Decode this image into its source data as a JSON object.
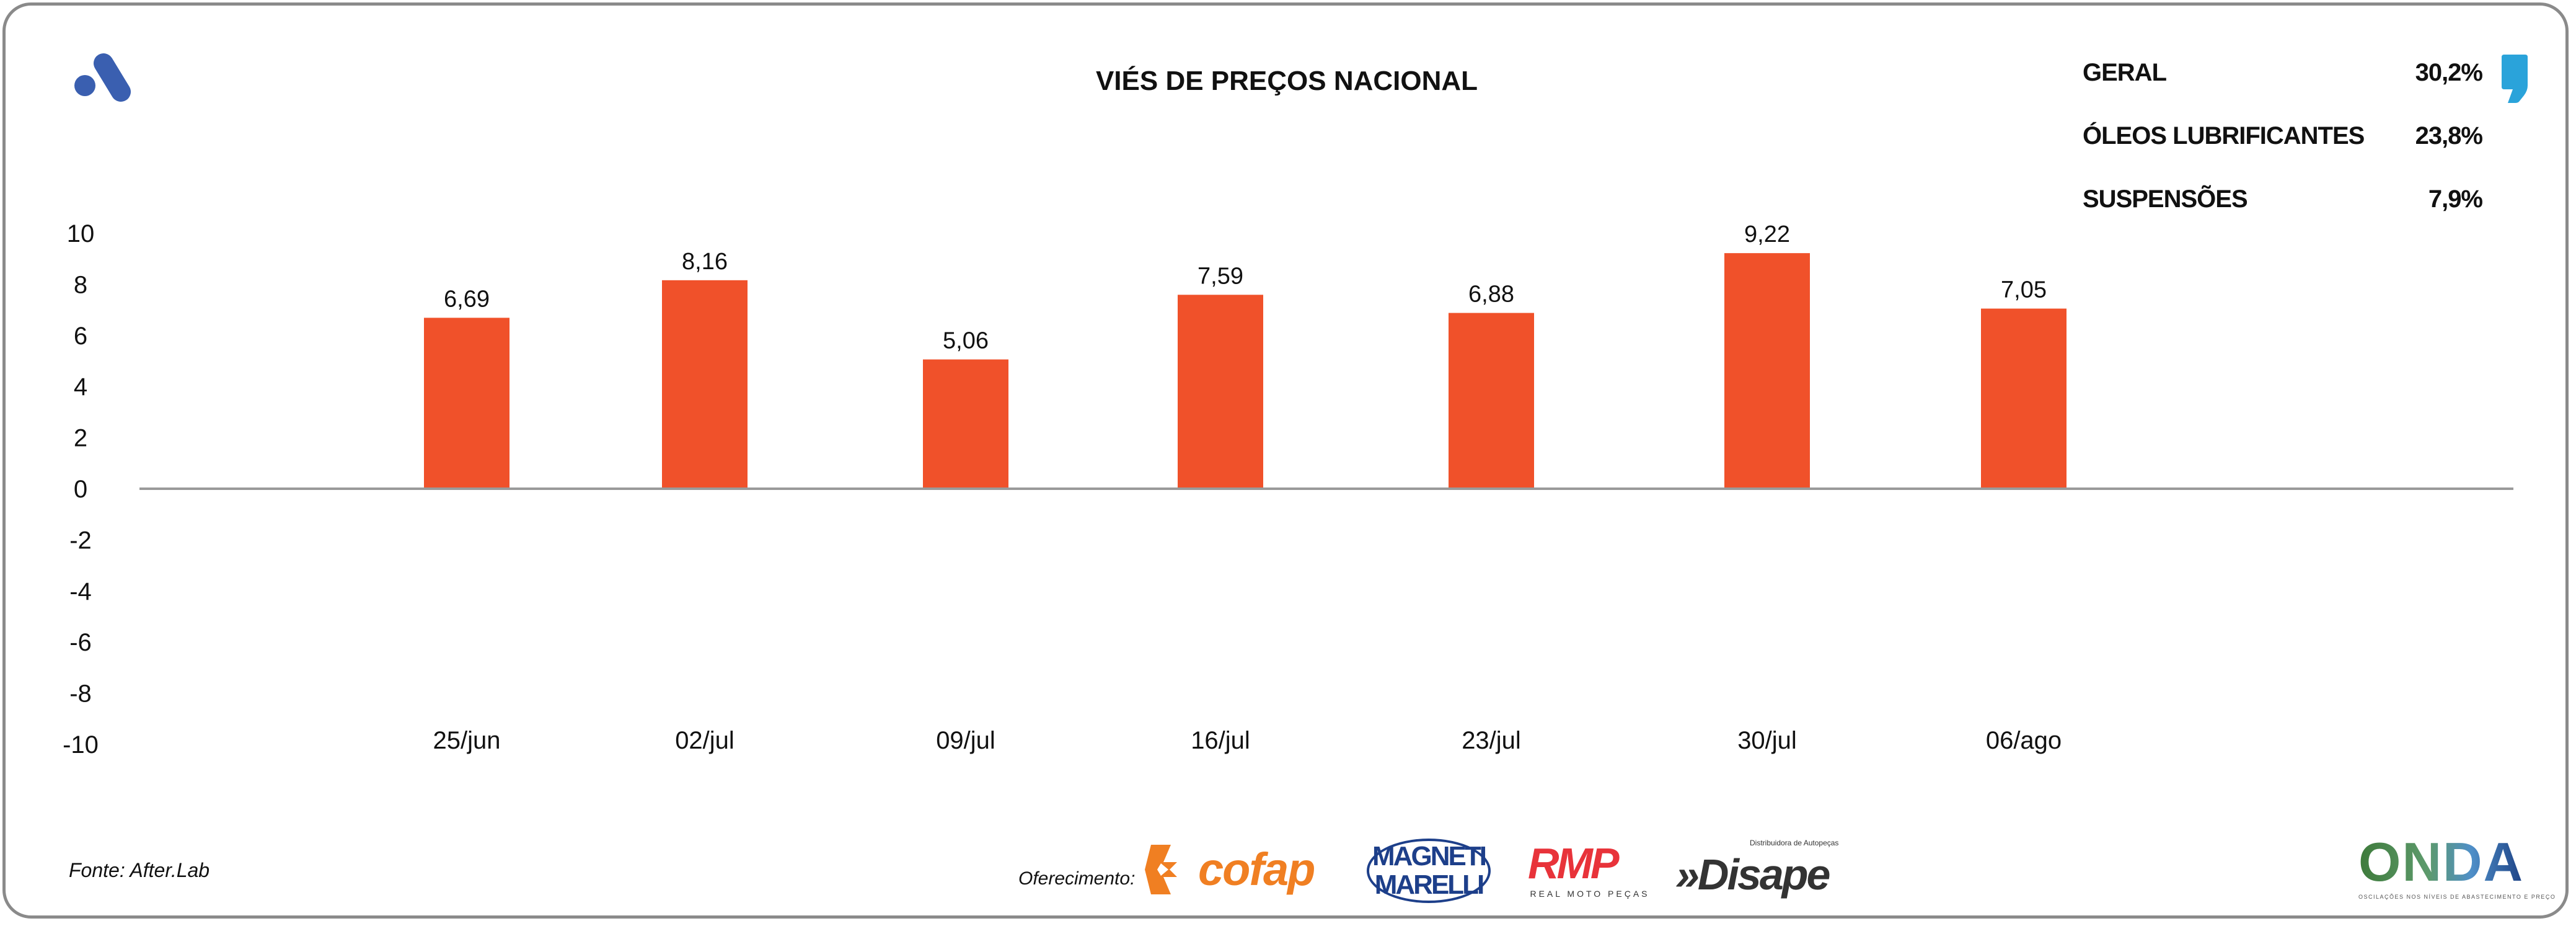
{
  "title": "VIÉS DE PREÇOS NACIONAL",
  "legend": [
    {
      "label": "GERAL",
      "value": "30,2%"
    },
    {
      "label": "ÓLEOS LUBRIFICANTES",
      "value": "23,8%"
    },
    {
      "label": "SUSPENSÕES",
      "value": "7,9%"
    }
  ],
  "footer": {
    "source": "Fonte: After.Lab",
    "offer_label": "Oferecimento:",
    "sponsors": {
      "cofap": "cofap",
      "magneti_line1": "MAGNETI",
      "magneti_line2": "MARELLI",
      "rmp": "RMP",
      "rmp_sub": "REAL MOTO PEÇAS",
      "disape": "»Disape",
      "disape_sub": "Distribuidora de Autopeças"
    },
    "onda": "ONDA",
    "onda_sub": "OSCILAÇÕES NOS NÍVEIS DE ABASTECIMENTO E PREÇO"
  },
  "colors": {
    "bar": "#F0512A",
    "axis": "#9a9a9a",
    "brand_blue": "#3a5fb0",
    "comma": "#2aa3da"
  },
  "chart_data": {
    "type": "bar",
    "title": "VIÉS DE PREÇOS NACIONAL",
    "categories": [
      "25/jun",
      "02/jul",
      "09/jul",
      "16/jul",
      "23/jul",
      "30/jul",
      "06/ago"
    ],
    "values": [
      6.69,
      8.16,
      5.06,
      7.59,
      6.88,
      9.22,
      7.05
    ],
    "value_labels": [
      "6,69",
      "8,16",
      "5,06",
      "7,59",
      "6,88",
      "9,22",
      "7,05"
    ],
    "ylim": [
      -10,
      10
    ],
    "yticks": [
      "10",
      "8",
      "6",
      "4",
      "2",
      "0",
      "-2",
      "-4",
      "-6",
      "-8",
      "-10"
    ],
    "xlabel": "",
    "ylabel": "",
    "grid": false,
    "legend": "top-right"
  }
}
